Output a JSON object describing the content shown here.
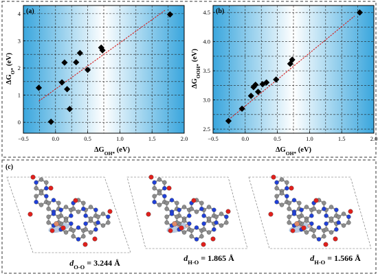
{
  "chart_data": [
    {
      "type": "scatter",
      "panel_label": "(a)",
      "xlabel": "ΔG_OH* (eV)",
      "ylabel": "ΔG_O* (eV)",
      "xlim": [
        -0.5,
        2.0
      ],
      "ylim": [
        -0.4,
        4.3
      ],
      "xticks": [
        -0.5,
        0.0,
        0.5,
        1.0,
        1.5,
        2.0
      ],
      "yticks": [
        0,
        1,
        2,
        3,
        4
      ],
      "grid": true,
      "points": [
        {
          "x": -0.26,
          "y": 1.27
        },
        {
          "x": -0.07,
          "y": 0.02
        },
        {
          "x": 0.1,
          "y": 1.47
        },
        {
          "x": 0.14,
          "y": 2.2
        },
        {
          "x": 0.18,
          "y": 1.22
        },
        {
          "x": 0.22,
          "y": 0.49
        },
        {
          "x": 0.32,
          "y": 2.21
        },
        {
          "x": 0.38,
          "y": 2.55
        },
        {
          "x": 0.5,
          "y": 1.93
        },
        {
          "x": 0.71,
          "y": 2.75
        },
        {
          "x": 0.73,
          "y": 2.65
        },
        {
          "x": 1.78,
          "y": 3.97
        }
      ],
      "fit": {
        "x": [
          -0.26,
          1.7
        ],
        "y": [
          0.78,
          4.12
        ]
      }
    },
    {
      "type": "scatter",
      "panel_label": "(b)",
      "xlabel": "ΔG_OH* (eV)",
      "ylabel": "ΔG_OOH* (eV)",
      "xlim": [
        -0.5,
        2.0
      ],
      "ylim": [
        2.43,
        4.62
      ],
      "xticks": [
        -0.5,
        0.0,
        0.5,
        1.0,
        1.5,
        2.0
      ],
      "yticks": [
        2.5,
        3.0,
        3.5,
        4.0,
        4.5
      ],
      "grid": true,
      "points": [
        {
          "x": -0.26,
          "y": 2.64
        },
        {
          "x": -0.05,
          "y": 2.85
        },
        {
          "x": 0.09,
          "y": 3.07
        },
        {
          "x": 0.13,
          "y": 3.22
        },
        {
          "x": 0.16,
          "y": 3.26
        },
        {
          "x": 0.2,
          "y": 3.14
        },
        {
          "x": 0.27,
          "y": 3.27
        },
        {
          "x": 0.33,
          "y": 3.3
        },
        {
          "x": 0.48,
          "y": 3.35
        },
        {
          "x": 0.7,
          "y": 3.62
        },
        {
          "x": 0.73,
          "y": 3.69
        },
        {
          "x": 1.78,
          "y": 4.5
        }
      ],
      "fit": {
        "x": [
          -0.26,
          1.7
        ],
        "y": [
          2.66,
          4.44
        ]
      }
    }
  ],
  "panel_c": {
    "label": "(c)",
    "structures": [
      {
        "label_main": "d",
        "label_sub": "O-O",
        "label_value": "= 3.244 Å"
      },
      {
        "label_main": "d",
        "label_sub": "H-O",
        "label_value": "= 1.865 Å"
      },
      {
        "label_main": "d",
        "label_sub": "H-O",
        "label_value": "= 1.566 Å"
      }
    ]
  },
  "colors": {
    "points": "#000000",
    "fit_line": "#d42020",
    "plot_bg_edge": "#3aa6dd",
    "plot_bg_center": "#ffffff",
    "carbon": "#8c8c8c",
    "nitrogen": "#2040d8",
    "oxygen": "#e0201c",
    "hydrogen": "#f2b8b0",
    "metal": "#e08a6a"
  }
}
